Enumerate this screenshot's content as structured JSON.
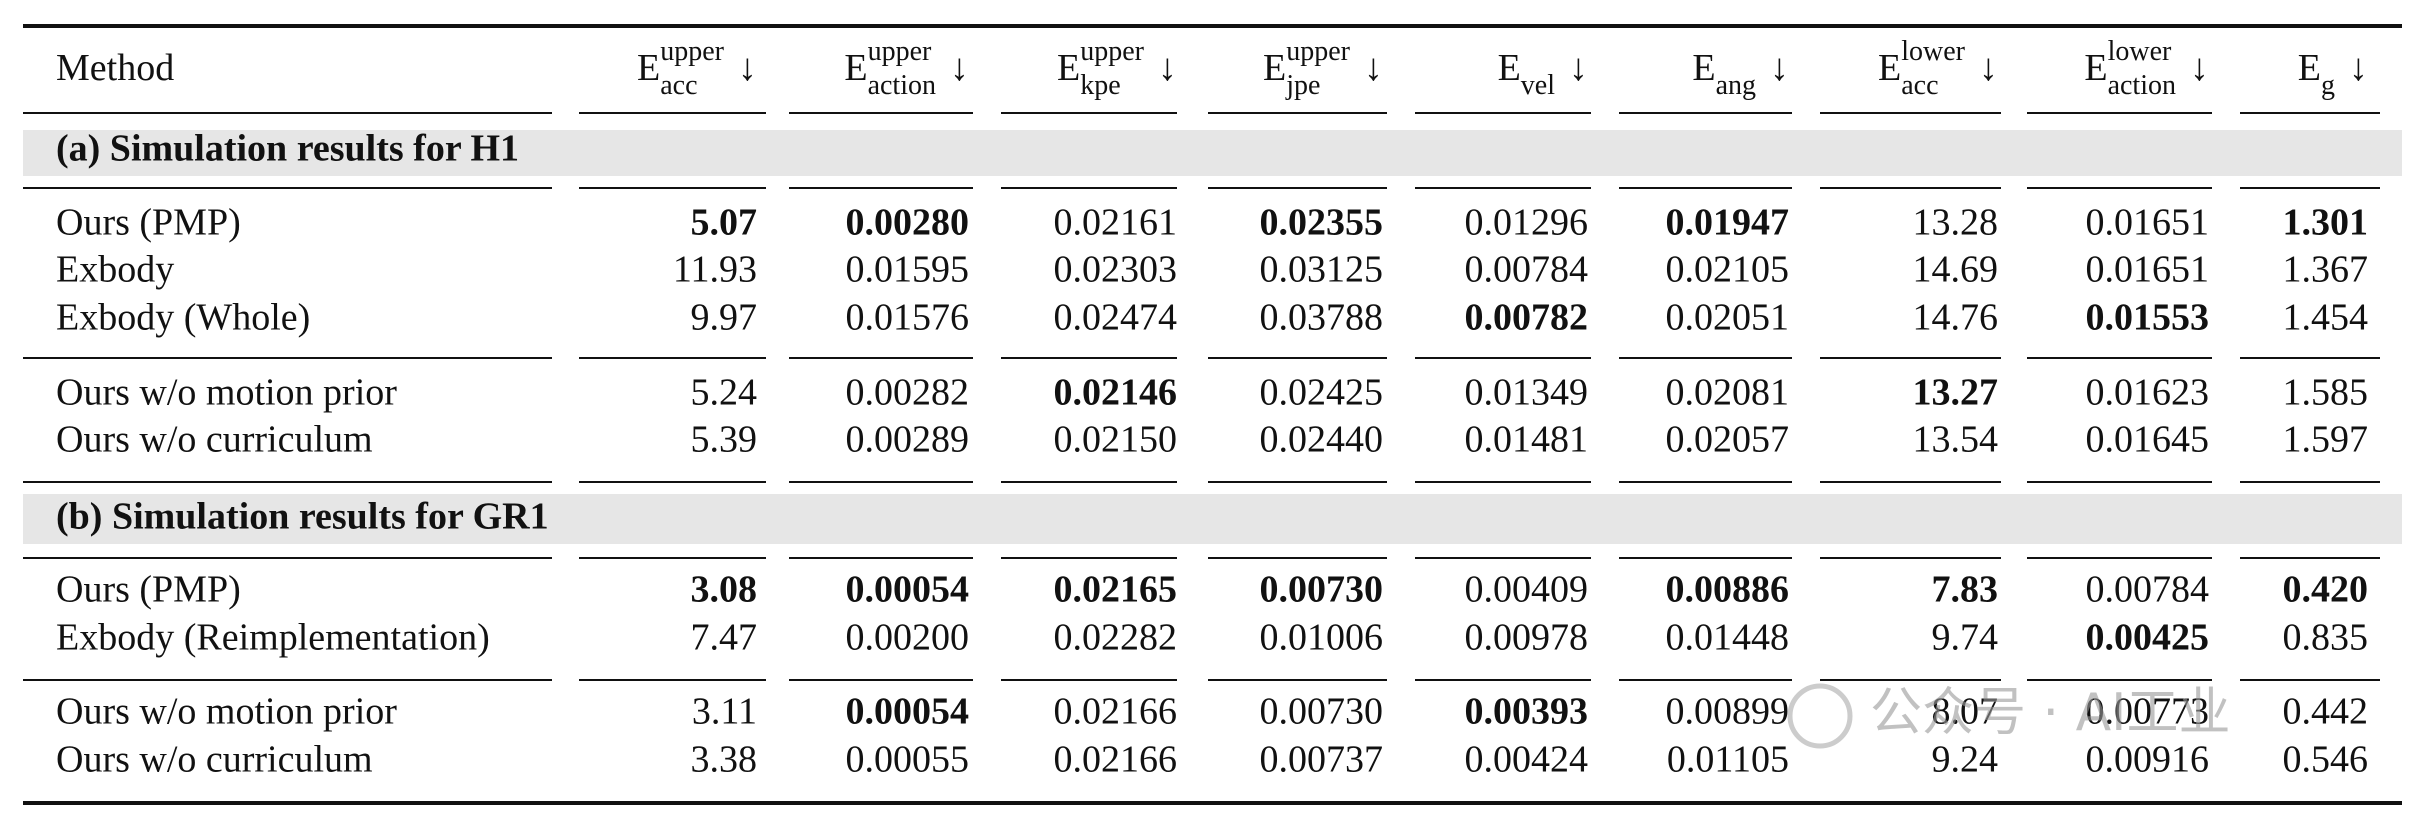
{
  "table": {
    "columns": [
      {
        "label": "Method"
      },
      {
        "base": "E",
        "sup": "upper",
        "sub": "acc",
        "arrow": "↓"
      },
      {
        "base": "E",
        "sup": "upper",
        "sub": "action",
        "arrow": "↓"
      },
      {
        "base": "E",
        "sup": "upper",
        "sub": "kpe",
        "arrow": "↓"
      },
      {
        "base": "E",
        "sup": "upper",
        "sub": "jpe",
        "arrow": "↓"
      },
      {
        "base": "E",
        "sub": "vel",
        "arrow": "↓"
      },
      {
        "base": "E",
        "sub": "ang",
        "arrow": "↓"
      },
      {
        "base": "E",
        "sup": "lower",
        "sub": "acc",
        "arrow": "↓"
      },
      {
        "base": "E",
        "sup": "lower",
        "sub": "action",
        "arrow": "↓"
      },
      {
        "base": "E",
        "sub": "g",
        "arrow": "↓"
      }
    ],
    "sections": [
      {
        "title": "(a) Simulation results for H1",
        "groups": [
          [
            {
              "method": "Ours (PMP)",
              "values": [
                "5.07",
                "0.00280",
                "0.02161",
                "0.02355",
                "0.01296",
                "0.01947",
                "13.28",
                "0.01651",
                "1.301"
              ],
              "bold": [
                0,
                1,
                3,
                5,
                8
              ]
            },
            {
              "method": "Exbody",
              "values": [
                "11.93",
                "0.01595",
                "0.02303",
                "0.03125",
                "0.00784",
                "0.02105",
                "14.69",
                "0.01651",
                "1.367"
              ],
              "bold": []
            },
            {
              "method": "Exbody (Whole)",
              "values": [
                "9.97",
                "0.01576",
                "0.02474",
                "0.03788",
                "0.00782",
                "0.02051",
                "14.76",
                "0.01553",
                "1.454"
              ],
              "bold": [
                4,
                7
              ]
            }
          ],
          [
            {
              "method": "Ours w/o motion prior",
              "values": [
                "5.24",
                "0.00282",
                "0.02146",
                "0.02425",
                "0.01349",
                "0.02081",
                "13.27",
                "0.01623",
                "1.585"
              ],
              "bold": [
                2,
                6
              ]
            },
            {
              "method": "Ours w/o curriculum",
              "values": [
                "5.39",
                "0.00289",
                "0.02150",
                "0.02440",
                "0.01481",
                "0.02057",
                "13.54",
                "0.01645",
                "1.597"
              ],
              "bold": []
            }
          ]
        ]
      },
      {
        "title": "(b) Simulation results for GR1",
        "groups": [
          [
            {
              "method": "Ours (PMP)",
              "values": [
                "3.08",
                "0.00054",
                "0.02165",
                "0.00730",
                "0.00409",
                "0.00886",
                "7.83",
                "0.00784",
                "0.420"
              ],
              "bold": [
                0,
                1,
                2,
                3,
                5,
                6,
                8
              ]
            },
            {
              "method": "Exbody (Reimplementation)",
              "values": [
                "7.47",
                "0.00200",
                "0.02282",
                "0.01006",
                "0.00978",
                "0.01448",
                "9.74",
                "0.00425",
                "0.835"
              ],
              "bold": [
                7
              ]
            }
          ],
          [
            {
              "method": "Ours w/o motion prior",
              "values": [
                "3.11",
                "0.00054",
                "0.02166",
                "0.00730",
                "0.00393",
                "0.00899",
                "8.07",
                "0.00773",
                "0.442"
              ],
              "bold": [
                1,
                4
              ]
            },
            {
              "method": "Ours w/o curriculum",
              "values": [
                "3.38",
                "0.00055",
                "0.02166",
                "0.00737",
                "0.00424",
                "0.01105",
                "9.24",
                "0.00916",
                "0.546"
              ],
              "bold": []
            }
          ]
        ]
      }
    ]
  },
  "watermark": "公众号 · AI工业"
}
